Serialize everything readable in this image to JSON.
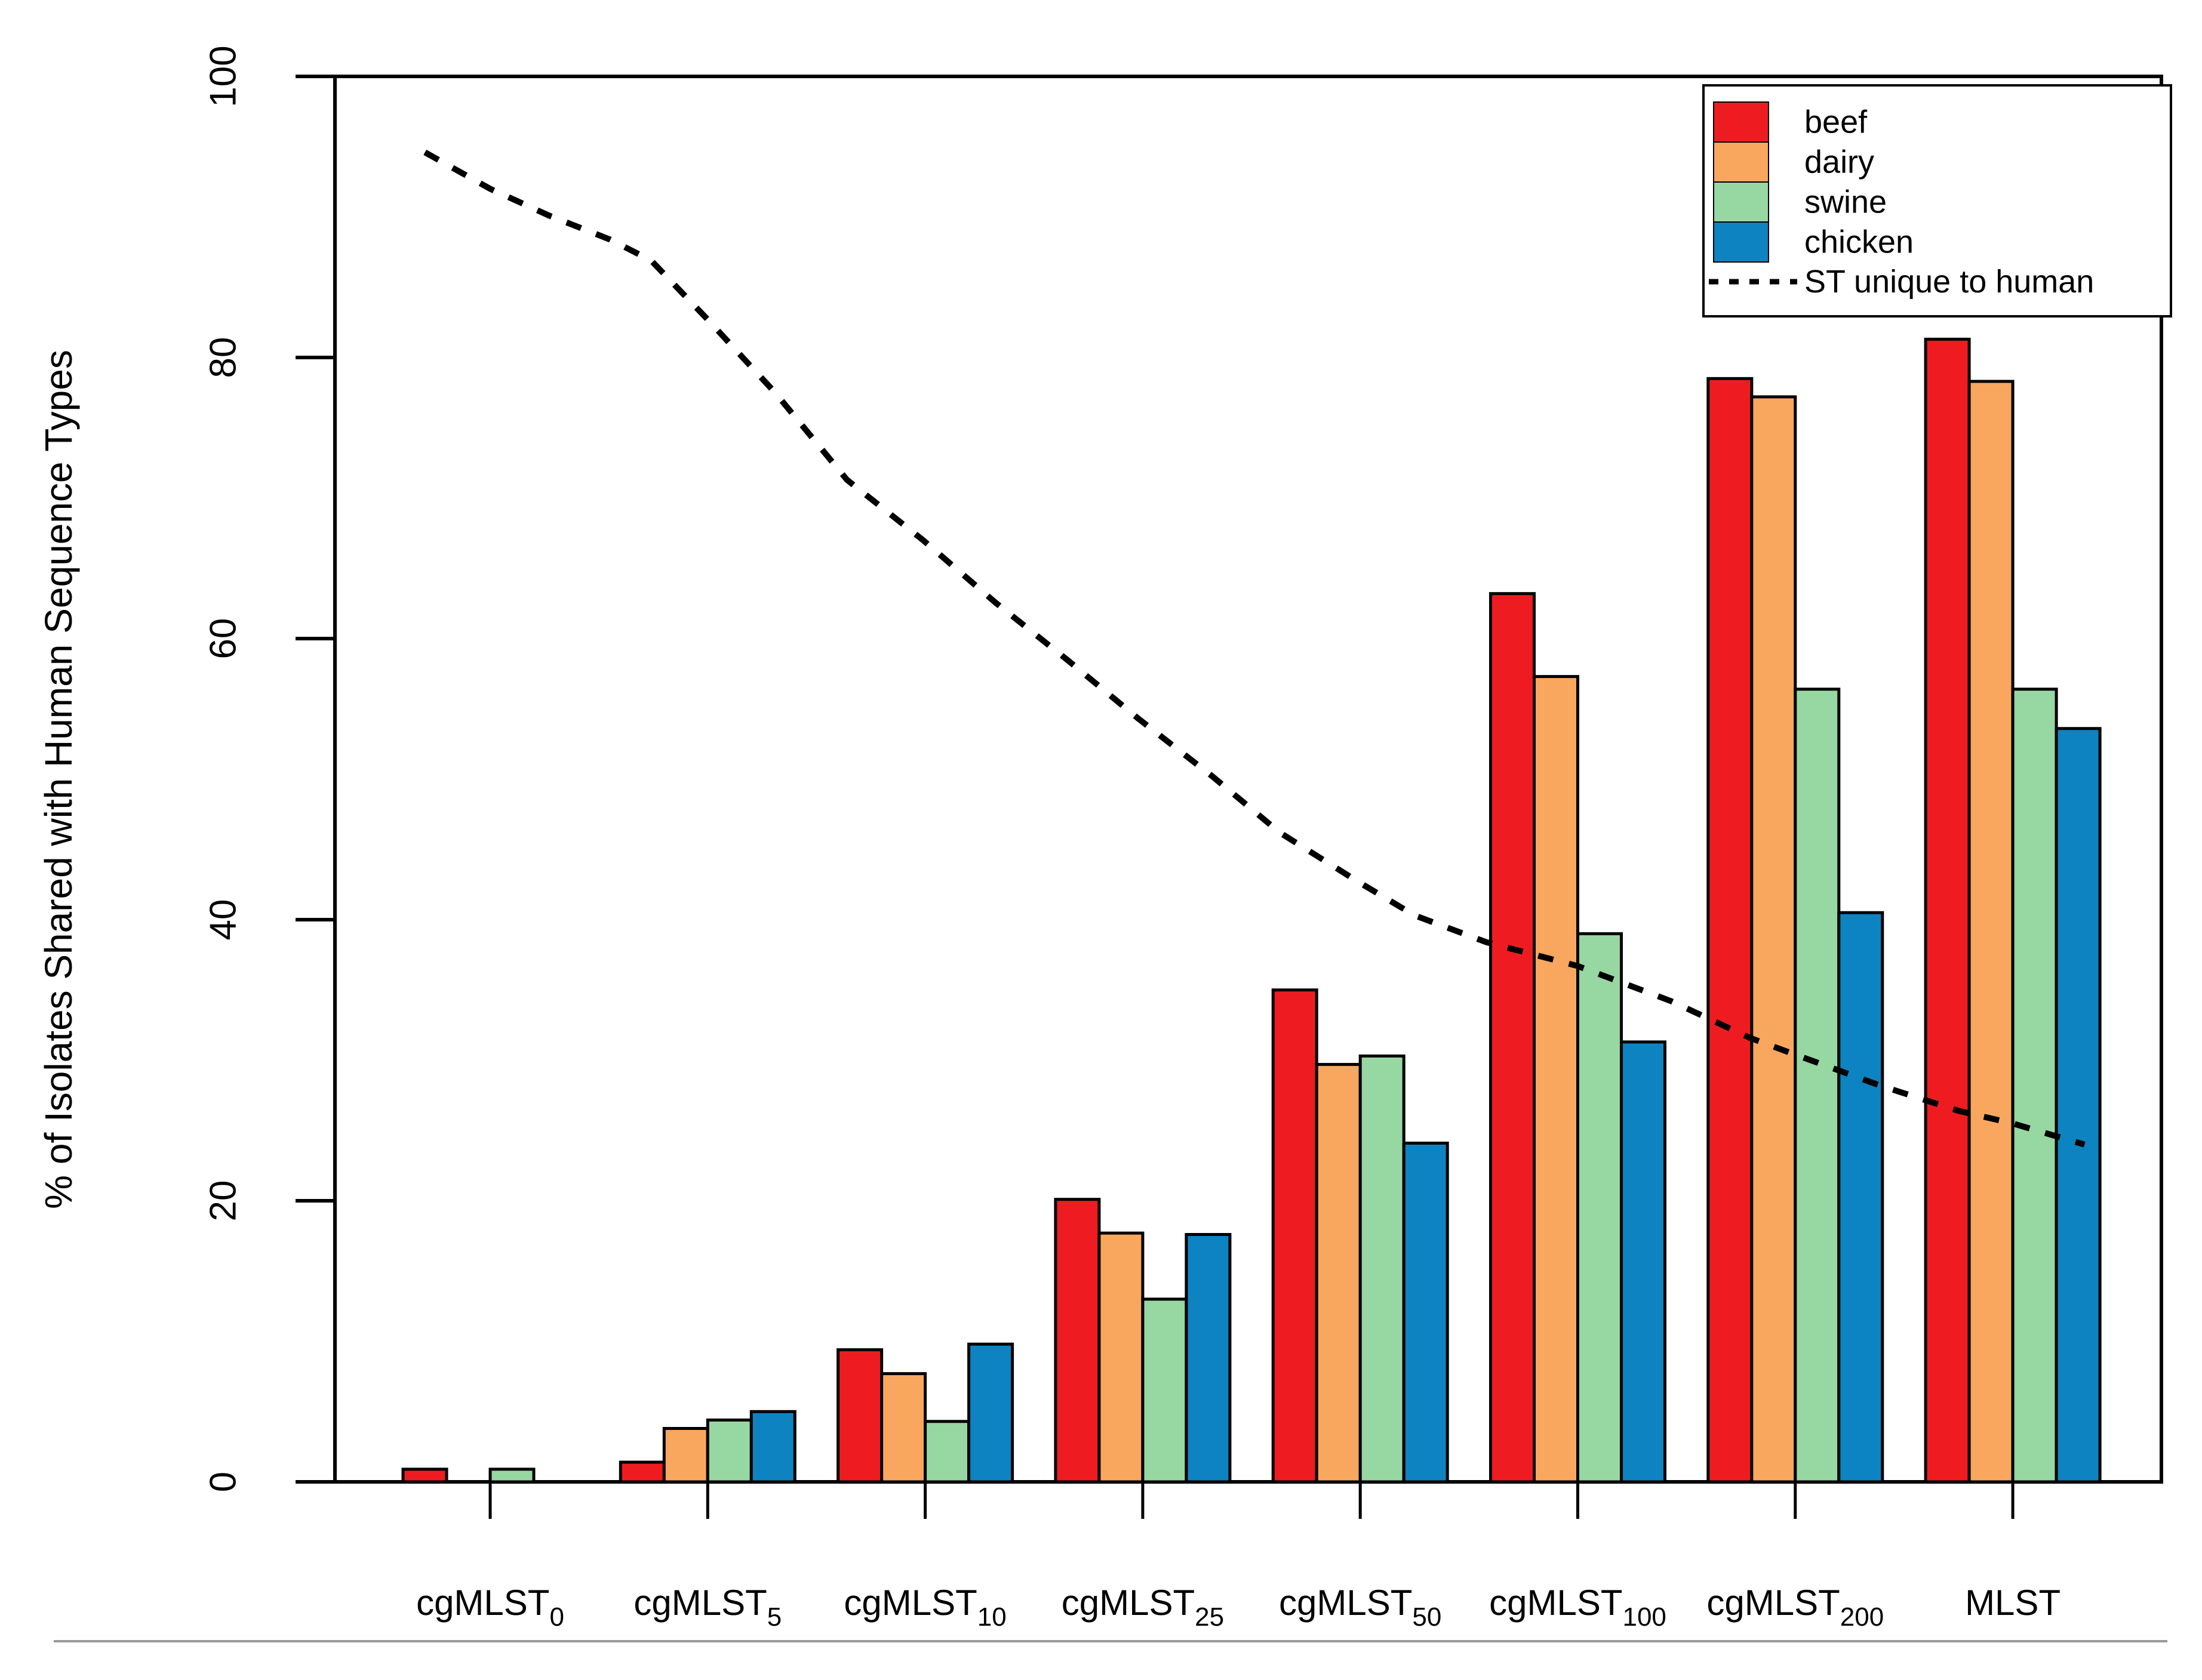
{
  "figure": {
    "background": "#ffffff",
    "bottom_rule_color": "#999999"
  },
  "chart_data": {
    "type": "bar",
    "title": "",
    "xlabel": "",
    "ylabel": "% of Isolates Shared with Human Sequence Types",
    "ylim": [
      0,
      100
    ],
    "yticks": [
      "0",
      "20",
      "40",
      "60",
      "80",
      "100"
    ],
    "grid": false,
    "legend_position": "top-right",
    "categories": [
      {
        "base": "cgMLST",
        "sub": "0"
      },
      {
        "base": "cgMLST",
        "sub": "5"
      },
      {
        "base": "cgMLST",
        "sub": "10"
      },
      {
        "base": "cgMLST",
        "sub": "25"
      },
      {
        "base": "cgMLST",
        "sub": "50"
      },
      {
        "base": "cgMLST",
        "sub": "100"
      },
      {
        "base": "cgMLST",
        "sub": "200"
      },
      {
        "base": "MLST",
        "sub": ""
      }
    ],
    "series": [
      {
        "name": "beef",
        "color": "#EE1C21",
        "values": [
          0.9,
          1.4,
          9.4,
          20.1,
          35.0,
          63.2,
          78.5,
          81.3
        ]
      },
      {
        "name": "dairy",
        "color": "#F9A75F",
        "values": [
          0,
          3.8,
          7.7,
          17.7,
          29.7,
          57.3,
          77.2,
          78.3
        ]
      },
      {
        "name": "swine",
        "color": "#97D7A2",
        "values": [
          0.9,
          4.4,
          4.3,
          13.0,
          30.3,
          39.0,
          56.4,
          56.4
        ]
      },
      {
        "name": "chicken",
        "color": "#0D83C1",
        "values": [
          0,
          5.0,
          9.8,
          17.6,
          24.1,
          31.3,
          40.5,
          53.6
        ]
      }
    ],
    "line_series": {
      "name": "ST unique to human",
      "color": "#000000",
      "style": "dashed",
      "values_at_categories": [
        92.0,
        82.7,
        67.0,
        54.3,
        42.7,
        36.7,
        30.4,
        25.5
      ],
      "points": [
        {
          "u": -0.3,
          "pct": 94.6
        },
        {
          "u": 0.0,
          "pct": 92.0
        },
        {
          "u": 0.27,
          "pct": 90.1
        },
        {
          "u": 0.55,
          "pct": 88.4
        },
        {
          "u": 0.74,
          "pct": 86.9
        },
        {
          "u": 1.0,
          "pct": 82.7
        },
        {
          "u": 1.31,
          "pct": 77.5
        },
        {
          "u": 1.64,
          "pct": 71.3
        },
        {
          "u": 1.99,
          "pct": 67.0
        },
        {
          "u": 2.32,
          "pct": 62.6
        },
        {
          "u": 2.66,
          "pct": 58.4
        },
        {
          "u": 2.98,
          "pct": 54.3
        },
        {
          "u": 3.32,
          "pct": 50.2
        },
        {
          "u": 3.63,
          "pct": 46.2
        },
        {
          "u": 3.99,
          "pct": 42.7
        },
        {
          "u": 4.25,
          "pct": 40.3
        },
        {
          "u": 4.58,
          "pct": 38.4
        },
        {
          "u": 5.0,
          "pct": 36.7
        },
        {
          "u": 5.43,
          "pct": 34.2
        },
        {
          "u": 5.79,
          "pct": 31.6
        },
        {
          "u": 6.0,
          "pct": 30.4
        },
        {
          "u": 6.39,
          "pct": 28.2
        },
        {
          "u": 6.75,
          "pct": 26.4
        },
        {
          "u": 7.0,
          "pct": 25.5
        },
        {
          "u": 7.33,
          "pct": 24.0
        }
      ]
    },
    "legend": {
      "entries": [
        "beef",
        "dairy",
        "swine",
        "chicken",
        "ST unique to human"
      ]
    }
  }
}
